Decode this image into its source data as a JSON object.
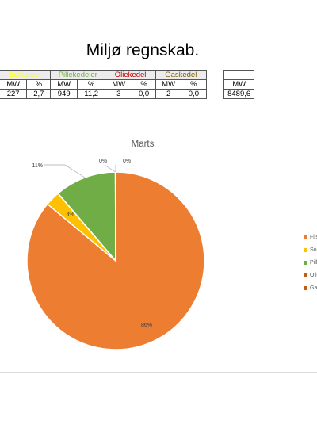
{
  "page": {
    "title": "Miljø regnskab."
  },
  "table": {
    "groups": [
      {
        "label": "Solfanger",
        "color": "#ffff00"
      },
      {
        "label": "Pillekedeler",
        "color": "#70ad47"
      },
      {
        "label": "Oliekedel",
        "color": "#c00000"
      },
      {
        "label": "Gaskedel",
        "color": "#806000"
      }
    ],
    "subheaders": [
      "MW",
      "%",
      "MW",
      "%",
      "MW",
      "%",
      "MW",
      "%",
      "MW"
    ],
    "values": [
      "227",
      "2,7",
      "949",
      "11,2",
      "3",
      "0,0",
      "2",
      "0,0",
      "8489,6"
    ]
  },
  "chart_data": {
    "type": "pie",
    "title": "Marts",
    "slices": [
      {
        "name": "Flis",
        "value": 86,
        "label": "86%",
        "color": "#ed7d31"
      },
      {
        "name": "Sol",
        "value": 2.7,
        "label": "3%",
        "color": "#ffc000"
      },
      {
        "name": "Pill",
        "value": 11.2,
        "label": "11%",
        "color": "#70ad47"
      },
      {
        "name": "Olie",
        "value": 0.04,
        "label": "0%",
        "color": "#c55a11"
      },
      {
        "name": "Gas",
        "value": 0.02,
        "label": "0%",
        "color": "#c55a11"
      }
    ],
    "legend_position": "right"
  }
}
